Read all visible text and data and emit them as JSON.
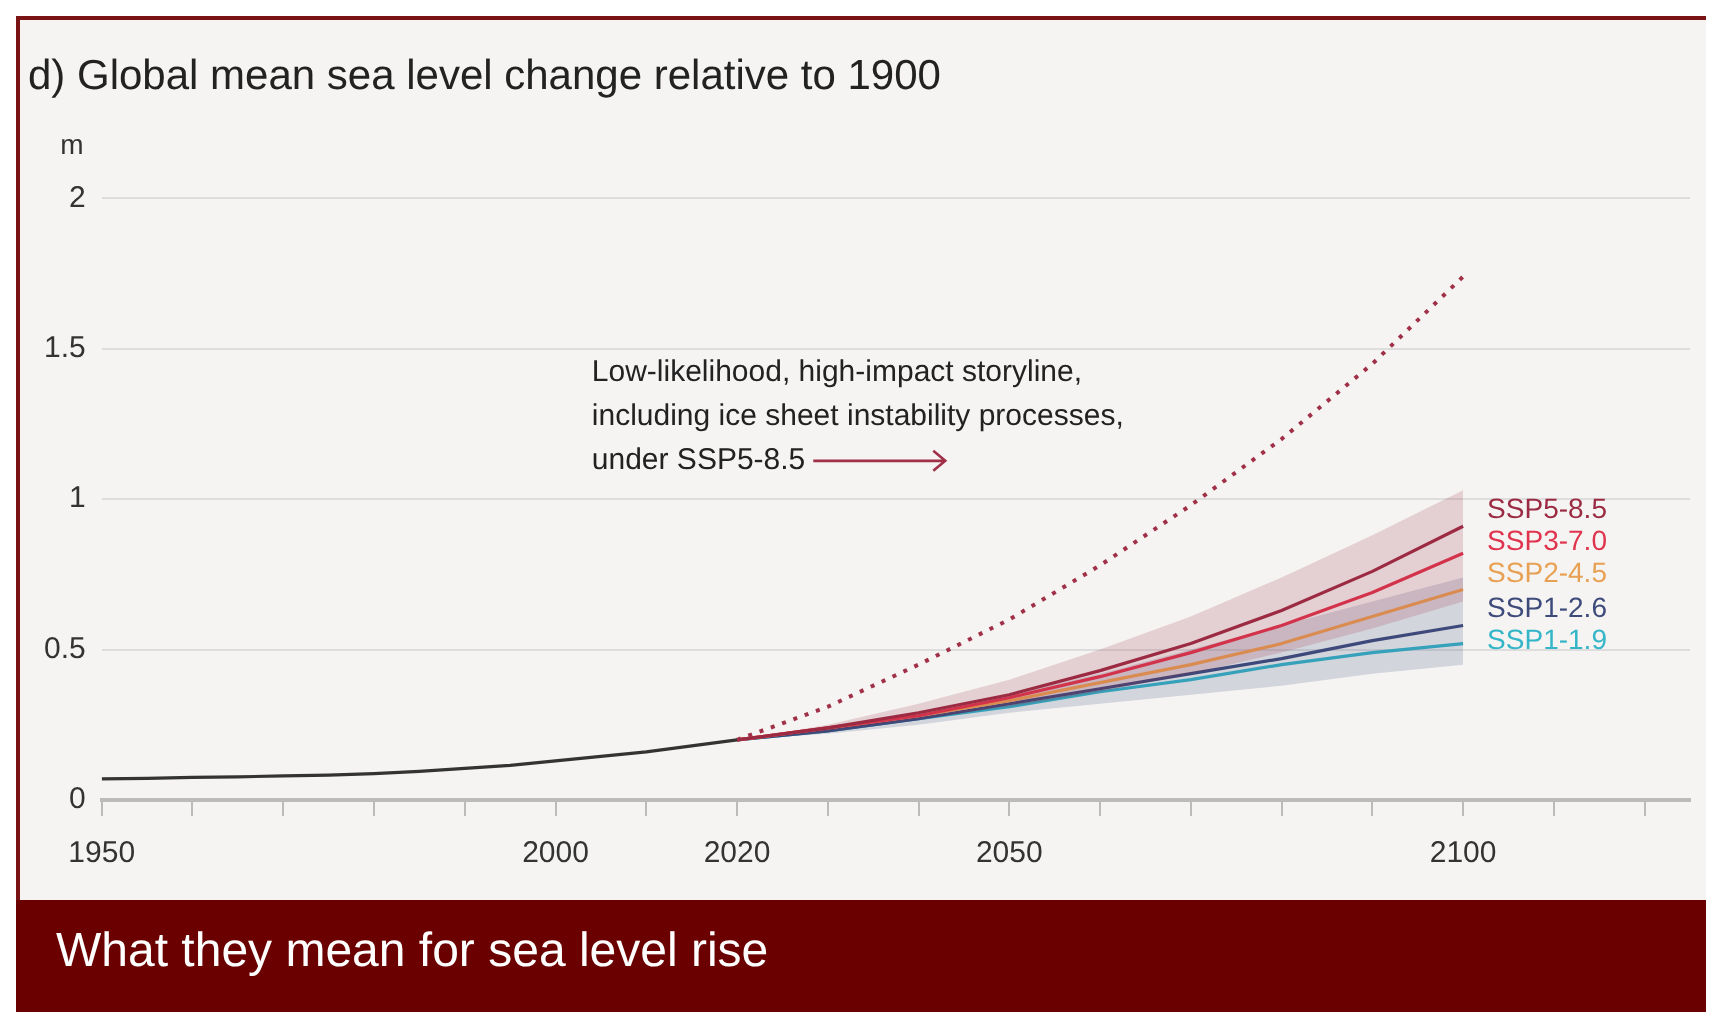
{
  "chart_data": {
    "type": "line",
    "title": "d) Global mean sea level change relative to 1900",
    "ylabel": "m",
    "xlim": [
      1950,
      2125
    ],
    "xticks": [
      1950,
      {
        "value": 1960,
        "label": null
      },
      {
        "value": 1970,
        "label": null
      },
      {
        "value": 1980,
        "label": null
      },
      {
        "value": 1990,
        "label": null
      },
      2000,
      {
        "value": 2010,
        "label": null
      },
      2020,
      {
        "value": 2030,
        "label": null
      },
      {
        "value": 2040,
        "label": null
      },
      2050,
      {
        "value": 2060,
        "label": null
      },
      {
        "value": 2070,
        "label": null
      },
      {
        "value": 2080,
        "label": null
      },
      {
        "value": 2090,
        "label": null
      },
      2100,
      {
        "value": 2110,
        "label": null
      },
      {
        "value": 2120,
        "label": null
      }
    ],
    "ylim": [
      0,
      2
    ],
    "yticks": [
      0,
      0.5,
      1,
      1.5,
      2
    ],
    "grid": "y",
    "legend": false,
    "marker": "none",
    "series": [
      {
        "color": "#333333",
        "x": [
          1950,
          1955,
          1960,
          1965,
          1970,
          1975,
          1980,
          1985,
          1990,
          1995,
          2000,
          2005,
          2010,
          2015,
          2020
        ],
        "values": [
          0.07,
          0.072,
          0.075,
          0.077,
          0.08,
          0.083,
          0.088,
          0.095,
          0.105,
          0.115,
          0.13,
          0.145,
          0.16,
          0.18,
          0.2
        ]
      },
      {
        "color": "#a03048",
        "line_style": "dotted",
        "x": [
          2020,
          2030,
          2040,
          2050,
          2060,
          2070,
          2080,
          2090,
          2100
        ],
        "values": [
          0.2,
          0.31,
          0.45,
          0.6,
          0.78,
          0.98,
          1.2,
          1.45,
          1.74
        ]
      },
      {
        "name": "SSP5-8.5",
        "color": "#9b2a43",
        "x": [
          2020,
          2030,
          2040,
          2050,
          2060,
          2070,
          2080,
          2090,
          2100
        ],
        "values": [
          0.2,
          0.24,
          0.29,
          0.35,
          0.43,
          0.52,
          0.63,
          0.76,
          0.91
        ],
        "lower": [
          0.2,
          0.23,
          0.27,
          0.31,
          0.36,
          0.42,
          0.49,
          0.57,
          0.66
        ],
        "upper": [
          0.2,
          0.25,
          0.32,
          0.4,
          0.5,
          0.61,
          0.74,
          0.88,
          1.03
        ]
      },
      {
        "name": "SSP3-7.0",
        "color": "#e0344e",
        "x": [
          2020,
          2030,
          2040,
          2050,
          2060,
          2070,
          2080,
          2090,
          2100
        ],
        "values": [
          0.2,
          0.24,
          0.28,
          0.34,
          0.41,
          0.49,
          0.58,
          0.69,
          0.82
        ]
      },
      {
        "name": "SSP2-4.5",
        "color": "#e8a154",
        "x": [
          2020,
          2030,
          2040,
          2050,
          2060,
          2070,
          2080,
          2090,
          2100
        ],
        "values": [
          0.2,
          0.24,
          0.28,
          0.33,
          0.39,
          0.45,
          0.52,
          0.61,
          0.7
        ]
      },
      {
        "name": "SSP1-2.6",
        "color": "#3d4a7a",
        "x": [
          2020,
          2030,
          2040,
          2050,
          2060,
          2070,
          2080,
          2090,
          2100
        ],
        "values": [
          0.2,
          0.23,
          0.27,
          0.32,
          0.37,
          0.42,
          0.47,
          0.53,
          0.58
        ],
        "lower": [
          0.2,
          0.22,
          0.25,
          0.29,
          0.32,
          0.35,
          0.38,
          0.42,
          0.45
        ],
        "upper": [
          0.2,
          0.24,
          0.29,
          0.35,
          0.42,
          0.5,
          0.58,
          0.66,
          0.74
        ]
      },
      {
        "name": "SSP1-1.9",
        "color": "#34b5c8",
        "x": [
          2020,
          2030,
          2040,
          2050,
          2060,
          2070,
          2080,
          2090,
          2100
        ],
        "values": [
          0.2,
          0.23,
          0.27,
          0.31,
          0.36,
          0.4,
          0.45,
          0.49,
          0.52
        ]
      }
    ],
    "annotations": [
      "Low-likelihood, high-impact storyline, including ice sheet instability processes, under SSP5-8.5",
      "What they mean for sea level rise"
    ]
  }
}
